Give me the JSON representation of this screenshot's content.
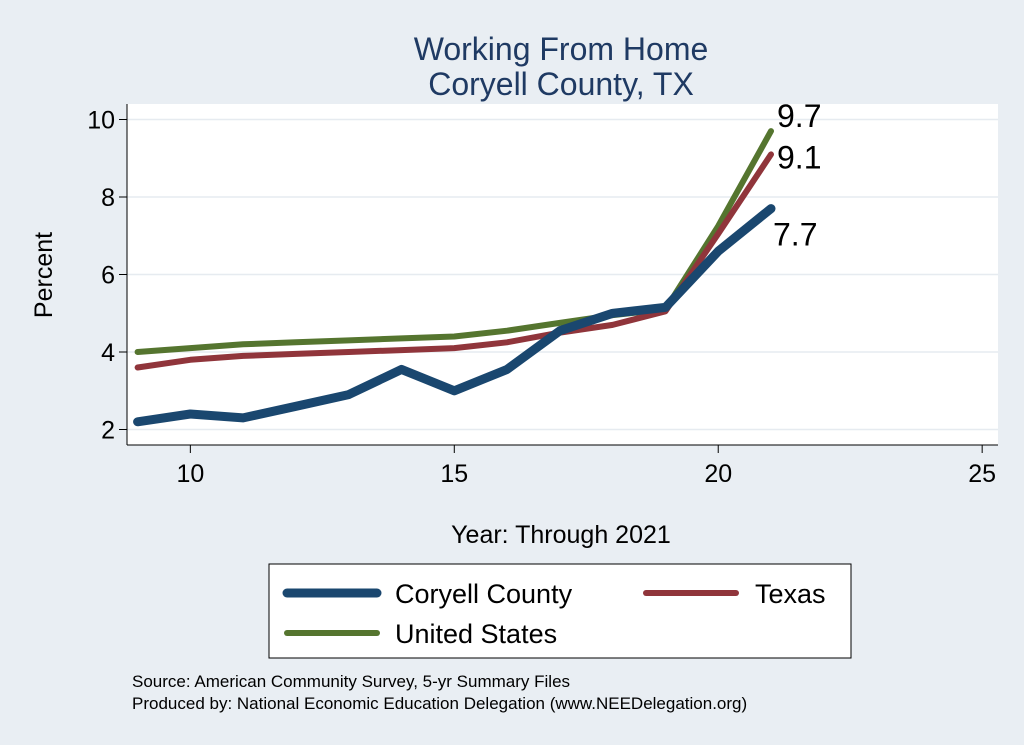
{
  "chart_data": {
    "type": "line",
    "title": [
      "Working From Home",
      "Coryell County, TX"
    ],
    "xlabel": "Year: Through 2021",
    "ylabel": "Percent",
    "xlim": [
      8.8,
      25.3
    ],
    "ylim": [
      1.6,
      10.4
    ],
    "xticks": [
      10,
      15,
      20,
      25
    ],
    "yticks": [
      2,
      4,
      6,
      8,
      10
    ],
    "grid": true,
    "legend_position": "bottom",
    "x": [
      9,
      10,
      11,
      12,
      13,
      14,
      15,
      16,
      17,
      18,
      19,
      20,
      21
    ],
    "series": [
      {
        "name": "Coryell County",
        "color": "#1a476f",
        "values": [
          2.2,
          2.4,
          2.3,
          2.6,
          2.9,
          3.55,
          3.0,
          3.55,
          4.55,
          5.0,
          5.15,
          6.6,
          7.7
        ],
        "end_label": "7.7"
      },
      {
        "name": "Texas",
        "color": "#90353b",
        "values": [
          3.6,
          3.8,
          3.9,
          3.95,
          4.0,
          4.05,
          4.1,
          4.25,
          4.5,
          4.7,
          5.05,
          7.05,
          9.1
        ],
        "end_label": "9.1"
      },
      {
        "name": "United States",
        "color": "#55752f",
        "values": [
          4.0,
          4.1,
          4.2,
          4.25,
          4.3,
          4.35,
          4.4,
          4.55,
          4.75,
          4.95,
          5.1,
          7.25,
          9.7
        ],
        "end_label": "9.7"
      }
    ],
    "notes": [
      "Source: American Community Survey, 5-yr Summary Files",
      "Produced by: National Economic Education Delegation (www.NEEDelegation.org)"
    ]
  }
}
